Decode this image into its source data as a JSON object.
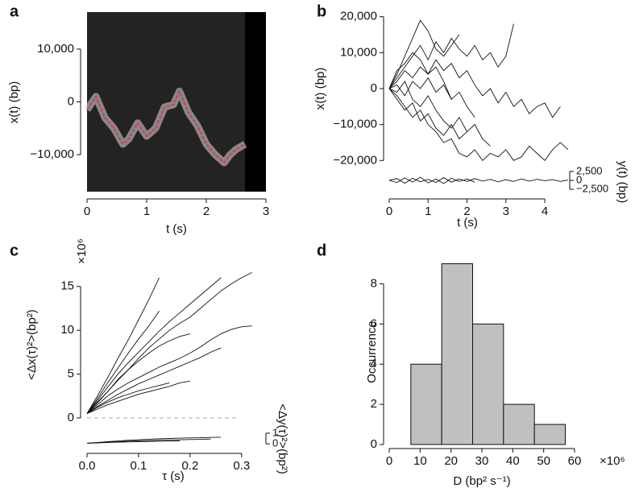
{
  "chart_data": [
    {
      "panel": "a",
      "type": "kymograph",
      "xlabel": "t (s)",
      "ylabel": "x(t) (bp)",
      "xlim": [
        0,
        3
      ],
      "ylim": [
        -17000,
        17000
      ],
      "xticks": [
        0,
        1,
        2,
        3
      ],
      "yticks": [
        {
          "value": -10000,
          "label": "−10,000"
        },
        0,
        {
          "value": 10000,
          "label": "10,000"
        }
      ],
      "image_xlim": [
        0,
        2.65
      ],
      "color": "#e0304a",
      "x": [
        0,
        0.15,
        0.3,
        0.45,
        0.6,
        0.7,
        0.85,
        1.0,
        1.15,
        1.3,
        1.45,
        1.55,
        1.7,
        1.85,
        2.0,
        2.15,
        2.3,
        2.4,
        2.5,
        2.65
      ],
      "values": [
        -1500,
        1000,
        -3000,
        -5000,
        -8000,
        -7000,
        -4000,
        -6500,
        -5000,
        -1000,
        -500,
        2000,
        -2000,
        -4500,
        -8000,
        -10000,
        -11500,
        -10000,
        -9000,
        -8000
      ]
    },
    {
      "panel": "b",
      "type": "line",
      "xlabel": "t (s)",
      "ylabel": "x(t) (bp)",
      "y2label": "y(t) (bp)",
      "xlim": [
        0,
        4.6
      ],
      "ylim": [
        -21500,
        21500
      ],
      "y2lim": [
        -3600,
        3600
      ],
      "xticks": [
        0,
        1,
        2,
        3,
        4
      ],
      "yticks": [
        {
          "value": -20000,
          "label": "−20,000"
        },
        {
          "value": -10000,
          "label": "−10,000"
        },
        0,
        {
          "value": 10000,
          "label": "10,000"
        },
        {
          "value": 20000,
          "label": "20,000"
        }
      ],
      "y2ticks": [
        {
          "value": -2500,
          "label": "−2,500"
        },
        0,
        {
          "value": 2500,
          "label": "2,500"
        }
      ],
      "x": [
        0,
        0.2,
        0.4,
        0.6,
        0.8,
        1.0,
        1.2,
        1.4,
        1.6,
        1.8,
        2.0,
        2.2,
        2.4,
        2.6,
        2.8,
        3.0,
        3.2,
        3.4,
        3.6,
        3.8,
        4.0,
        4.2,
        4.4,
        4.6
      ],
      "series": [
        {
          "color": "#111111",
          "values": [
            0,
            4000,
            9000,
            14000,
            19000,
            16000,
            11000,
            9000,
            12000,
            15000,
            null,
            null,
            null,
            null,
            null,
            null,
            null,
            null,
            null,
            null,
            null,
            null,
            null,
            null
          ]
        },
        {
          "color": "#111111",
          "values": [
            0,
            3000,
            6000,
            9000,
            12000,
            8000,
            13000,
            10000,
            14000,
            11000,
            9000,
            12000,
            8000,
            10000,
            6000,
            9000,
            18000,
            null,
            null,
            null,
            null,
            null,
            null,
            null
          ]
        },
        {
          "color": "#111111",
          "values": [
            0,
            -2000,
            -5000,
            -8000,
            -6000,
            -10000,
            -12000,
            -15000,
            -14000,
            -18000,
            -19000,
            -17000,
            -20000,
            -18000,
            -19000,
            -17000,
            -20000,
            -19000,
            -16000,
            -18000,
            -20000,
            -17000,
            -15000,
            -17000
          ]
        },
        {
          "color": "#111111",
          "values": [
            0,
            2000,
            5000,
            3000,
            6000,
            4000,
            8000,
            5000,
            7000,
            3000,
            5000,
            1000,
            -2000,
            0,
            -4000,
            -1000,
            -5000,
            -3000,
            -7000,
            -5000,
            -4000,
            -8000,
            -5000,
            null
          ]
        },
        {
          "color": "#111111",
          "values": [
            0,
            -1000,
            2000,
            -3000,
            -5000,
            -2000,
            -6000,
            -9000,
            -11000,
            -8000,
            -12000,
            -10000,
            -14000,
            -16000,
            null,
            null,
            null,
            null,
            null,
            null,
            null,
            null,
            null,
            null
          ]
        },
        {
          "color": "#111111",
          "values": [
            0,
            5000,
            7000,
            10000,
            8000,
            4000,
            6000,
            2000,
            -3000,
            -1000,
            -5000,
            -8000,
            null,
            null,
            null,
            null,
            null,
            null,
            null,
            null,
            null,
            null,
            null,
            null
          ]
        },
        {
          "color": "#111111",
          "values": [
            0,
            -3000,
            -6000,
            -4000,
            -9000,
            -7000,
            -11000,
            -13000,
            -10000,
            -14000,
            -12000,
            null,
            null,
            null,
            null,
            null,
            null,
            null,
            null,
            null,
            null,
            null,
            null,
            null
          ]
        },
        {
          "color": "#111111",
          "values": [
            0,
            1000,
            -2000,
            2000,
            0,
            3000,
            -1000,
            1000,
            -3000,
            null,
            null,
            null,
            null,
            null,
            null,
            null,
            null,
            null,
            null,
            null,
            null,
            null,
            null,
            null
          ]
        },
        {
          "color": "#111111",
          "axis": "y2",
          "values": [
            0,
            500,
            -800,
            600,
            -400,
            300,
            -600,
            800,
            -500,
            400,
            -300,
            500,
            -200,
            300,
            -400,
            200,
            -300,
            400,
            -200,
            300,
            -100,
            200,
            -300,
            100
          ]
        },
        {
          "color": "#111111",
          "axis": "y2",
          "values": [
            0,
            -600,
            700,
            -500,
            900,
            -700,
            400,
            -900,
            600,
            -300,
            400,
            -500,
            null,
            null,
            null,
            null,
            null,
            null,
            null,
            null,
            null,
            null,
            null,
            null
          ]
        }
      ]
    },
    {
      "panel": "c",
      "type": "line",
      "xlabel": "τ (s)",
      "ylabel": "<Δx(τ)²>(bp²)",
      "y_multiplier": "×10⁶",
      "y2label": "<Δy(τ)²>(bp²)",
      "xlim": [
        0,
        0.33
      ],
      "ylim": [
        0,
        17
      ],
      "y2lim": [
        -0.45,
        1.6
      ],
      "xticks": [
        {
          "value": 0,
          "label": "0.0"
        },
        0.1,
        0.2,
        0.3
      ],
      "yticks": [
        0,
        5,
        10,
        15
      ],
      "y2ticks": [
        0,
        1
      ],
      "reference_line": 0,
      "x": [
        0,
        0.02,
        0.04,
        0.06,
        0.08,
        0.1,
        0.12,
        0.14,
        0.16,
        0.18,
        0.2,
        0.22,
        0.24,
        0.26,
        0.28,
        0.3,
        0.32
      ],
      "series": [
        {
          "color": "#111111",
          "values": [
            0.5,
            2.5,
            4.6,
            6.8,
            8.9,
            11.2,
            13.5,
            16,
            null,
            null,
            null,
            null,
            null,
            null,
            null,
            null,
            null
          ]
        },
        {
          "color": "#111111",
          "values": [
            0.5,
            2,
            3.5,
            5,
            6.3,
            7.5,
            8.7,
            9.9,
            11,
            12,
            13,
            14,
            15,
            16,
            null,
            null,
            null
          ]
        },
        {
          "color": "#111111",
          "values": [
            0.5,
            1.8,
            3,
            4.3,
            5.5,
            6.8,
            8,
            9,
            10,
            10.8,
            11.5,
            12.5,
            13.5,
            14.5,
            15.3,
            16,
            16.6
          ]
        },
        {
          "color": "#111111",
          "values": [
            0.5,
            1.5,
            2.5,
            3.3,
            4,
            4.6,
            5.2,
            5.8,
            6.3,
            6.8,
            7.4,
            8.1,
            8.9,
            9.6,
            10.1,
            10.4,
            10.5
          ]
        },
        {
          "color": "#111111",
          "values": [
            0.5,
            1.3,
            2,
            2.7,
            3.3,
            3.9,
            4.4,
            4.9,
            5.4,
            5.9,
            6.4,
            6.9,
            7.5,
            8,
            null,
            null,
            null
          ]
        },
        {
          "color": "#111111",
          "values": [
            0.5,
            1.7,
            3,
            4.4,
            5.5,
            6.5,
            7.4,
            8.2,
            8.8,
            9.3,
            9.6,
            null,
            null,
            null,
            null,
            null,
            null
          ]
        },
        {
          "color": "#111111",
          "values": [
            0.5,
            1.2,
            1.8,
            2.3,
            2.7,
            3.1,
            3.4,
            3.7,
            4,
            null,
            null,
            null,
            null,
            null,
            null,
            null,
            null
          ]
        },
        {
          "color": "#111111",
          "values": [
            0.5,
            1,
            1.5,
            1.9,
            2.3,
            2.7,
            3,
            3.3,
            3.6,
            4,
            4.2,
            null,
            null,
            null,
            null,
            null,
            null
          ]
        },
        {
          "color": "#111111",
          "values": [
            0.5,
            2.2,
            4,
            5.7,
            7.4,
            9,
            10.5,
            12.2,
            null,
            null,
            null,
            null,
            null,
            null,
            null,
            null,
            null
          ]
        },
        {
          "color": "#111111",
          "axis": "y2",
          "values": [
            0.05,
            0.1,
            0.15,
            0.2,
            0.25,
            0.28,
            0.3,
            0.33,
            0.36,
            0.38,
            0.4,
            0.42,
            0.45,
            null,
            null,
            null,
            null
          ]
        },
        {
          "color": "#111111",
          "axis": "y2",
          "values": [
            0.05,
            0.08,
            0.12,
            0.15,
            0.17,
            0.2,
            0.22,
            0.24,
            0.26,
            0.28,
            null,
            null,
            null,
            null,
            null,
            null,
            null
          ]
        },
        {
          "color": "#111111",
          "axis": "y2",
          "values": [
            0.05,
            0.12,
            0.2,
            0.27,
            0.33,
            0.38,
            0.43,
            0.47,
            0.5,
            0.53,
            0.55,
            0.57,
            0.6,
            0.62,
            null,
            null,
            null
          ]
        }
      ]
    },
    {
      "panel": "d",
      "type": "histogram",
      "xlabel": "D (bp² s⁻¹)",
      "ylabel": "Occurrence",
      "x_multiplier": "×10⁶",
      "xlim": [
        0,
        60
      ],
      "ylim": [
        0,
        9.3
      ],
      "xticks": [
        0,
        10,
        20,
        30,
        40,
        50,
        60
      ],
      "yticks": [
        0,
        2,
        4,
        6,
        8
      ],
      "color": "#c0c0c0",
      "bins": [
        7,
        17,
        27,
        37,
        47,
        57
      ],
      "values": [
        4,
        9,
        6,
        2,
        1
      ]
    }
  ]
}
